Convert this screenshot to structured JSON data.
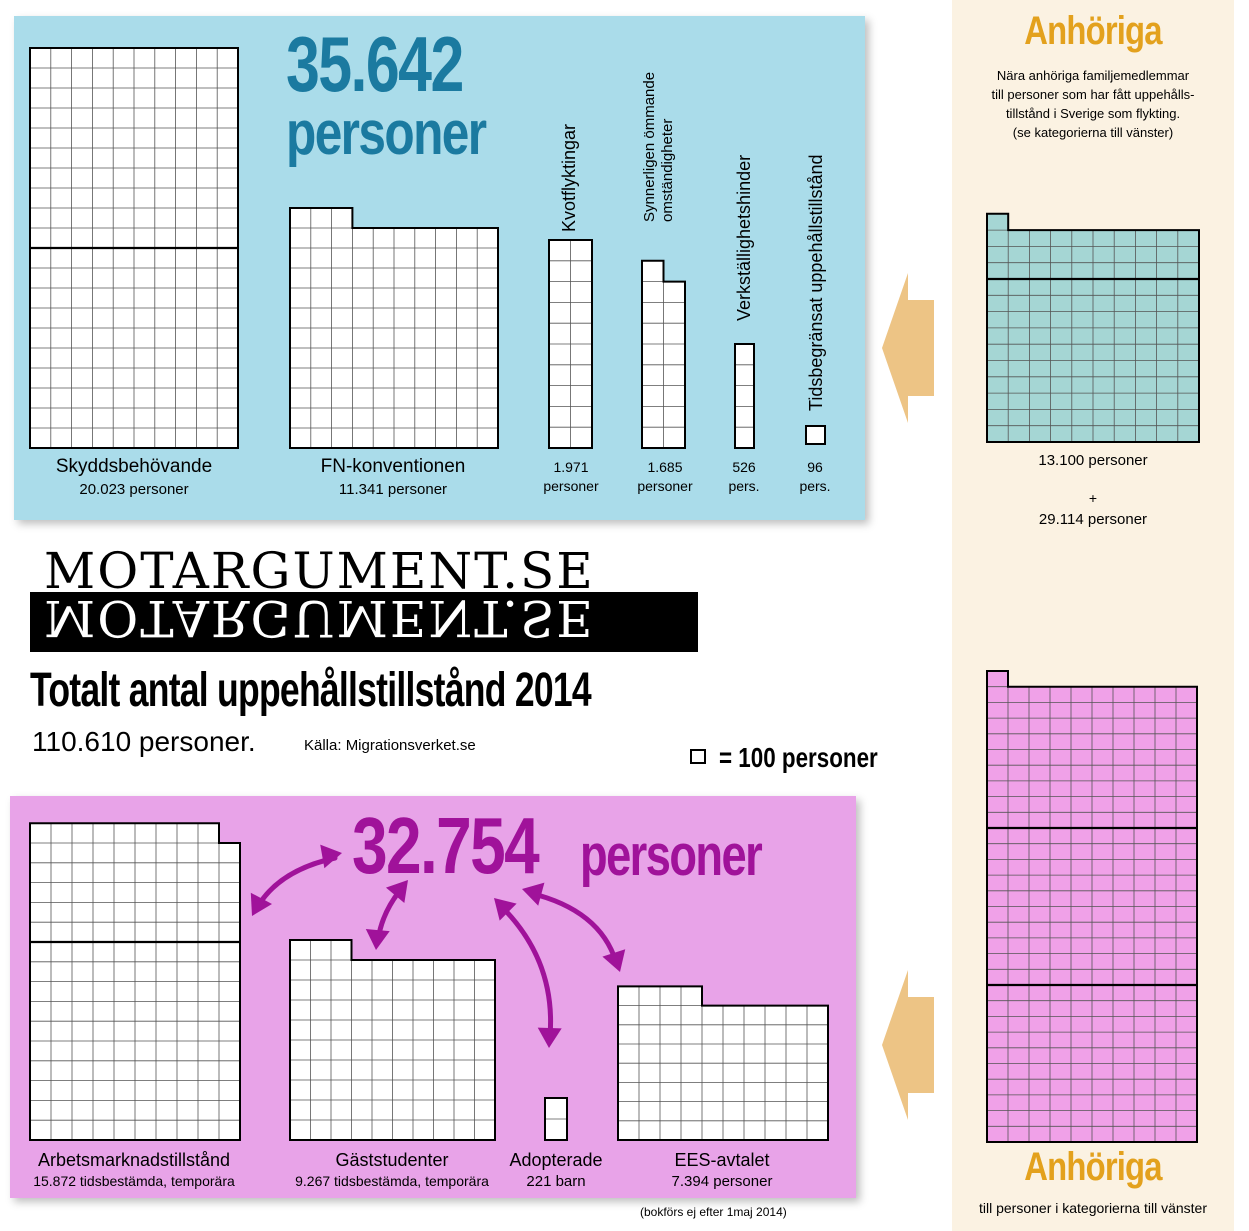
{
  "chart_data": {
    "type": "pictogram",
    "title": "Totalt antal uppehållstillstånd 2014",
    "total": "110.610 personer.",
    "source": "Källa: Migrationsverket.se",
    "legend": "= 100 personer",
    "unit_per_box": 100,
    "groups": [
      {
        "name": "protection",
        "total_label": "35.642",
        "total_unit": "personer",
        "color": "#aadcea",
        "items": [
          {
            "label": "Skyddsbehövande",
            "sub": "20.023 personer",
            "value": 20023,
            "bar_color": "#ffffff"
          },
          {
            "label": "FN-konventionen",
            "sub": "11.341 personer",
            "value": 11341,
            "bar_color": "#ffffff"
          },
          {
            "label": "Kvotflyktingar",
            "sub": "1.971 personer",
            "value": 1971,
            "bar_color": "#ffffff"
          },
          {
            "label": "Synnerligen ömmande omständigheter",
            "sub": "1.685 personer",
            "value": 1685,
            "bar_color": "#ffffff"
          },
          {
            "label": "Verkställighetshinder",
            "sub": "526 pers.",
            "value": 526,
            "bar_color": "#ffffff"
          },
          {
            "label": "Tidsbegränsat uppehållstillstånd",
            "sub": "96 pers.",
            "value": 96,
            "bar_color": "#ffffff"
          }
        ]
      },
      {
        "name": "other",
        "total_label": "32.754",
        "total_unit": "personer",
        "color": "#e8a3e8",
        "items": [
          {
            "label": "Arbetsmarknadstillstånd",
            "sub": "15.872 tidsbestämda, temporära",
            "value": 15872,
            "bar_color": "#ffffff"
          },
          {
            "label": "Gäststudenter",
            "sub": "9.267 tidsbestämda, temporära",
            "value": 9267,
            "bar_color": "#ffffff"
          },
          {
            "label": "Adopterade",
            "sub": "221 barn",
            "value": 221,
            "bar_color": "#ffffff"
          },
          {
            "label": "EES-avtalet",
            "sub": "7.394 personer",
            "value": 7394,
            "bar_color": "#ffffff"
          }
        ]
      },
      {
        "name": "relatives",
        "items": [
          {
            "label": "13.100 personer",
            "value": 13100,
            "bar_color": "#a5d6d4"
          },
          {
            "label": "29.114 personer",
            "value": 29114,
            "bar_color": "#f0a1e8"
          }
        ]
      }
    ]
  },
  "texts": {
    "big_blue_number": "35.642",
    "big_blue_unit": "personer",
    "big_pink_number": "32.754",
    "big_pink_unit": "personer",
    "logo": "MOTARGUMENT.SE",
    "headline": "Totalt antal uppehållstillstånd 2014",
    "total": "110.610 personer.",
    "source": "Källa: Migrationsverket.se",
    "legend": "= 100 personer",
    "anhoriga": "Anhöriga",
    "anh_desc_1": "Nära anhöriga familjemedlemmar",
    "anh_desc_2": "till personer som har fått uppehålls-",
    "anh_desc_3": "tillstånd i Sverige som flykting.",
    "anh_desc_4": "(se kategorierna till vänster)",
    "anh_val_1": "13.100 personer",
    "plus": "+",
    "anh_val_2": "29.114 personer",
    "anh_footer": "till personer i kategorierna till vänster",
    "bokfors_note": "(bokförs ej efter 1maj 2014)",
    "lbl_skydd": "Skyddsbehövande",
    "sub_skydd": "20.023 personer",
    "lbl_fn": "FN-konventionen",
    "sub_fn": "11.341 personer",
    "lbl_kvot": "Kvotflyktingar",
    "lbl_synn_1": "Synnerligen ömmande",
    "lbl_synn_2": "omständigheter",
    "lbl_verk": "Verkställighetshinder",
    "lbl_tids": "Tidsbegränsat uppehållstillstånd",
    "val_kvot_1": "1.971",
    "val_kvot_2": "personer",
    "val_synn_1": "1.685",
    "val_synn_2": "personer",
    "val_verk_1": "526",
    "val_verk_2": "pers.",
    "val_tids_1": "96",
    "val_tids_2": "pers.",
    "lbl_arb": "Arbetsmarknadstillstånd",
    "sub_arb": "15.872 tidsbestämda, temporära",
    "lbl_gast": "Gäststudenter",
    "sub_gast": "9.267 tidsbestämda, temporära",
    "lbl_adopt": "Adopterade",
    "sub_adopt": "221 barn",
    "lbl_ees": "EES-avtalet",
    "sub_ees": "7.394 personer"
  },
  "colors": {
    "blue_panel": "#aadcea",
    "pink_panel": "#e8a3e8",
    "side_panel": "#fbf2e2",
    "teal_bar": "#a5d6d4",
    "pink_bar": "#f0a1e8",
    "blue_number": "#1b7aa0",
    "purple_number": "#a0129a",
    "orange_title": "#e3a11d",
    "arrow_fill": "#edc485",
    "curved_arrow": "#a0129a"
  }
}
